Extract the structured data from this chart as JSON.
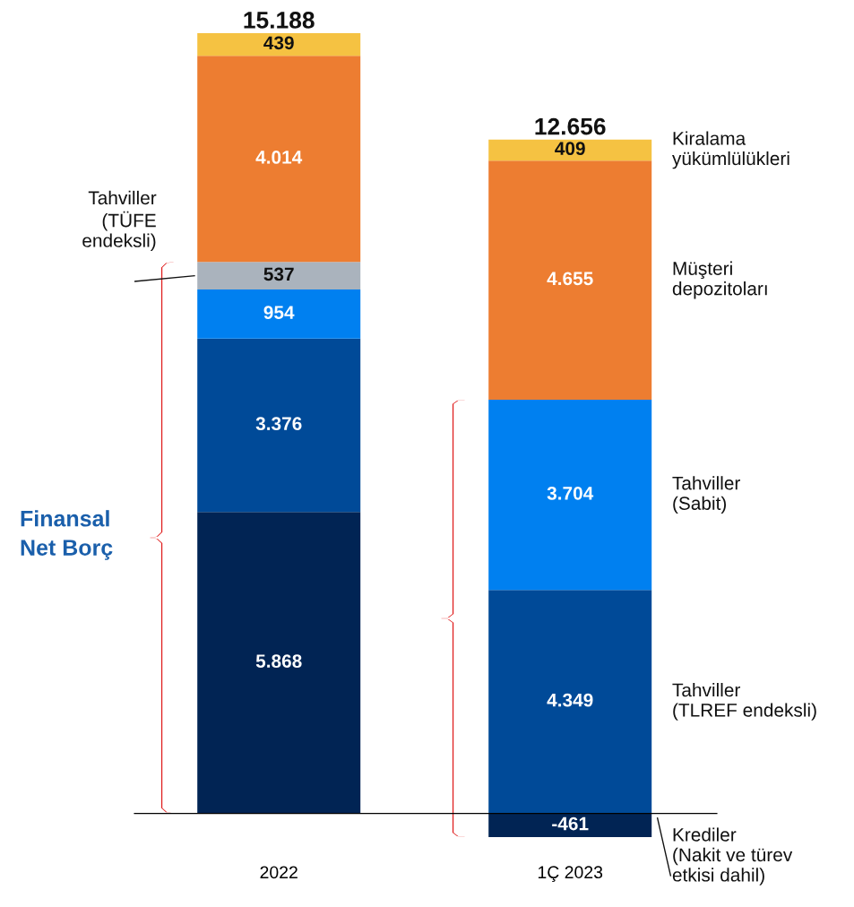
{
  "chart_data": {
    "type": "bar",
    "stacked": true,
    "categories": [
      "2022",
      "1Ç 2023"
    ],
    "series": [
      {
        "name": "Krediler\n(Nakit ve türev\netkisi dahil)",
        "color": "#012454",
        "values": [
          5868,
          -461
        ],
        "value_labels": [
          "5.868",
          "-461"
        ]
      },
      {
        "name": "Tahviller\n(TLREF endeksli)",
        "color": "#004a98",
        "values": [
          3376,
          4349
        ],
        "value_labels": [
          "3.376",
          "4.349"
        ]
      },
      {
        "name": "Tahviller\n(Sabit)",
        "color": "#0080f0",
        "values": [
          954,
          3704
        ],
        "value_labels": [
          "954",
          "3.704"
        ]
      },
      {
        "name": "Tahviller\n(TÜFE\nendeksli)",
        "color": "#aab3bd",
        "values": [
          537,
          null
        ],
        "value_labels": [
          "537",
          null
        ]
      },
      {
        "name": "Müşteri\ndepozitoları",
        "color": "#ed7d31",
        "values": [
          4014,
          4655
        ],
        "value_labels": [
          "4.014",
          "4.655"
        ]
      },
      {
        "name": "Kiralama\nyükümlülükleri",
        "color": "#f5c242",
        "values": [
          439,
          409
        ],
        "value_labels": [
          "439",
          "409"
        ]
      }
    ],
    "totals": [
      "15.188",
      "12.656"
    ],
    "annotations": [
      "Finansal\nNet Borç"
    ],
    "legend": false,
    "grid": false
  }
}
